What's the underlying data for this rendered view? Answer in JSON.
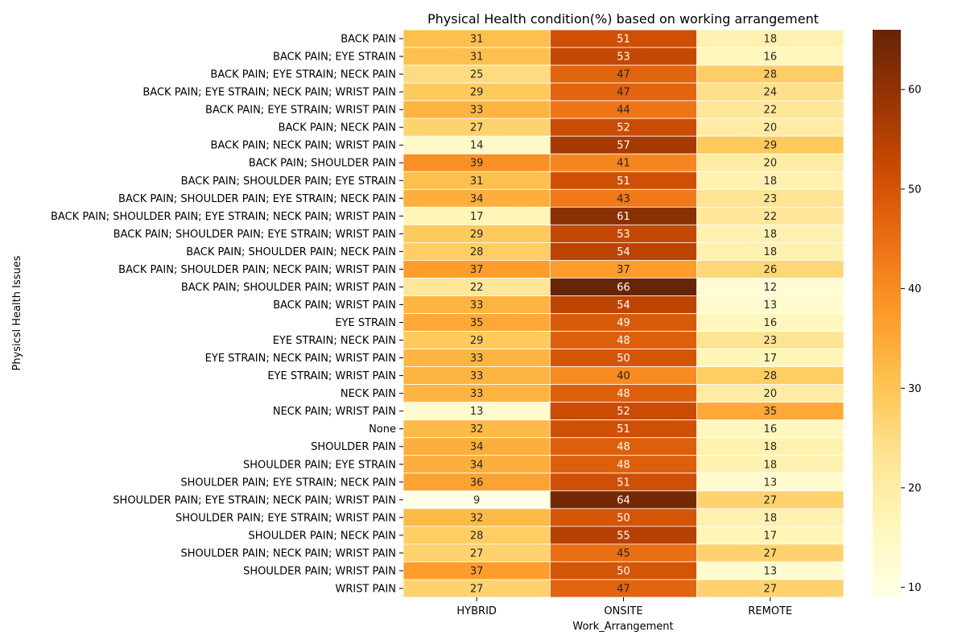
{
  "chart_data": {
    "type": "heatmap",
    "title": "Physical Health condition(%) based on working arrangement",
    "xlabel": "Work_Arrangement",
    "ylabel": "Physicsl Health Issues",
    "x_categories": [
      "HYBRID",
      "ONSITE",
      "REMOTE"
    ],
    "y_categories": [
      "BACK PAIN",
      "BACK PAIN; EYE STRAIN",
      "BACK PAIN; EYE STRAIN; NECK PAIN",
      "BACK PAIN; EYE STRAIN; NECK PAIN; WRIST PAIN",
      "BACK PAIN; EYE STRAIN; WRIST PAIN",
      "BACK PAIN; NECK PAIN",
      "BACK PAIN; NECK PAIN; WRIST PAIN",
      "BACK PAIN; SHOULDER PAIN",
      "BACK PAIN; SHOULDER PAIN; EYE STRAIN",
      "BACK PAIN; SHOULDER PAIN; EYE STRAIN; NECK PAIN",
      "BACK PAIN; SHOULDER PAIN; EYE STRAIN; NECK PAIN; WRIST PAIN",
      "BACK PAIN; SHOULDER PAIN; EYE STRAIN; WRIST PAIN",
      "BACK PAIN; SHOULDER PAIN; NECK PAIN",
      "BACK PAIN; SHOULDER PAIN; NECK PAIN; WRIST PAIN",
      "BACK PAIN; SHOULDER PAIN; WRIST PAIN",
      "BACK PAIN; WRIST PAIN",
      "EYE STRAIN",
      "EYE STRAIN; NECK PAIN",
      "EYE STRAIN; NECK PAIN; WRIST PAIN",
      "EYE STRAIN; WRIST PAIN",
      "NECK PAIN",
      "NECK PAIN; WRIST PAIN",
      "None",
      "SHOULDER PAIN",
      "SHOULDER PAIN; EYE STRAIN",
      "SHOULDER PAIN; EYE STRAIN; NECK PAIN",
      "SHOULDER PAIN; EYE STRAIN; NECK PAIN; WRIST PAIN",
      "SHOULDER PAIN; EYE STRAIN; WRIST PAIN",
      "SHOULDER PAIN; NECK PAIN",
      "SHOULDER PAIN; NECK PAIN; WRIST PAIN",
      "SHOULDER PAIN; WRIST PAIN",
      "WRIST PAIN"
    ],
    "values": [
      [
        31,
        51,
        18
      ],
      [
        31,
        53,
        16
      ],
      [
        25,
        47,
        28
      ],
      [
        29,
        47,
        24
      ],
      [
        33,
        44,
        22
      ],
      [
        27,
        52,
        20
      ],
      [
        14,
        57,
        29
      ],
      [
        39,
        41,
        20
      ],
      [
        31,
        51,
        18
      ],
      [
        34,
        43,
        23
      ],
      [
        17,
        61,
        22
      ],
      [
        29,
        53,
        18
      ],
      [
        28,
        54,
        18
      ],
      [
        37,
        37,
        26
      ],
      [
        22,
        66,
        12
      ],
      [
        33,
        54,
        13
      ],
      [
        35,
        49,
        16
      ],
      [
        29,
        48,
        23
      ],
      [
        33,
        50,
        17
      ],
      [
        33,
        40,
        28
      ],
      [
        33,
        48,
        20
      ],
      [
        13,
        52,
        35
      ],
      [
        32,
        51,
        16
      ],
      [
        34,
        48,
        18
      ],
      [
        34,
        48,
        18
      ],
      [
        36,
        51,
        13
      ],
      [
        9,
        64,
        27
      ],
      [
        32,
        50,
        18
      ],
      [
        28,
        55,
        17
      ],
      [
        27,
        45,
        27
      ],
      [
        37,
        50,
        13
      ],
      [
        27,
        47,
        27
      ]
    ],
    "vmin": 9,
    "vmax": 66,
    "colormap": "YlOrBr",
    "colorbar_ticks": [
      10,
      20,
      30,
      40,
      50,
      60
    ],
    "grid_lines_color": "#ffffff"
  }
}
